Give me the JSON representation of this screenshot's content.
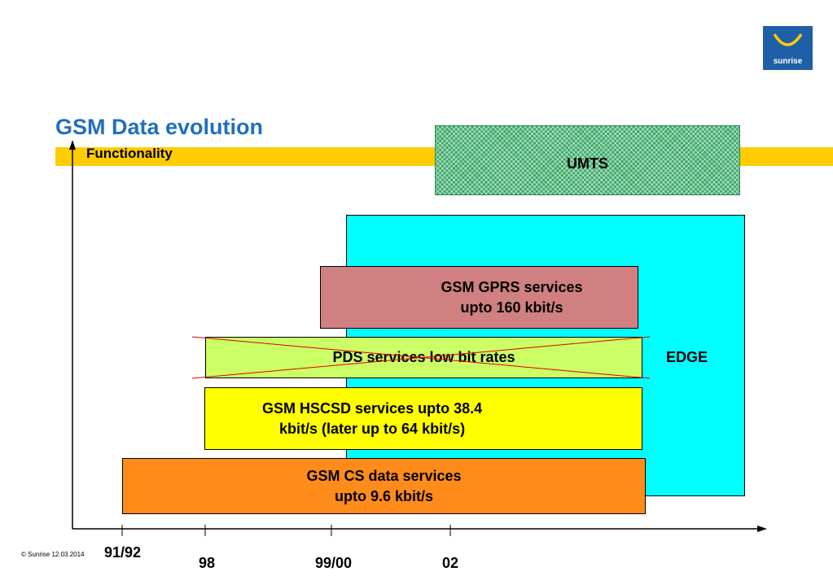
{
  "title": "GSM Data evolution",
  "y_axis_label": "Functionality",
  "logo": {
    "text": "sunrise"
  },
  "blocks": {
    "umts": "UMTS",
    "edge": "EDGE",
    "gprs": [
      "GSM GPRS services",
      "upto 160 kbit/s"
    ],
    "pds": "PDS services low bit rates",
    "hscsd": [
      "GSM HSCSD services upto 38.4",
      "kbit/s (later up to 64 kbit/s)"
    ],
    "cs": [
      "GSM CS data services",
      "upto 9.6 kbit/s"
    ]
  },
  "x_ticks": [
    "91/92",
    "98",
    "99/00",
    "02"
  ],
  "footer": {
    "copyright": "© Sunrise 12.03.2014"
  },
  "colors": {
    "title": "#1f6fbf",
    "band": "#ffcc00",
    "umts": "#3daa6a",
    "edge": "#00ffff",
    "gprs": "#d08080",
    "pds": "#ccff66",
    "hscsd": "#ffff00",
    "cs": "#ff8c1a",
    "strike": "#e00000"
  }
}
